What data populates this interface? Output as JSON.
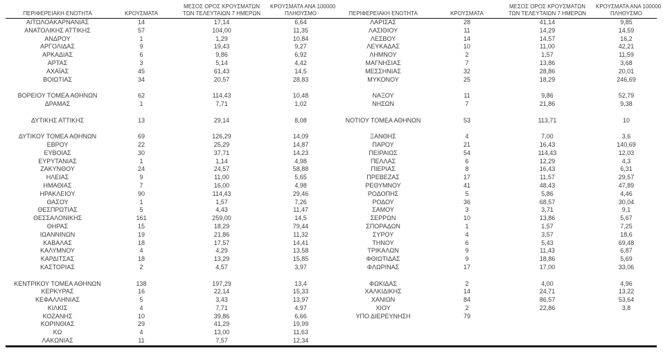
{
  "table": {
    "headers": {
      "region": "ΠΕΡΙΦΕΡΕΙΑΚΗ ΕΝΟΤΗΤΑ",
      "cases": "ΚΡΟΥΣΜΑΤΑ",
      "avg7": [
        "ΜΕΣΟΣ ΟΡΟΣ ΚΡΟΥΣΜΑΤΩΝ",
        "ΤΩΝ ΤΕΛΕΥΤΑΙΩΝ 7 ΗΜΕΡΩΝ"
      ],
      "per100k": [
        "ΚΡΟΥΣΜΑΤΑ ΑΝΑ 100000",
        "ΠΛΗΘΥΣΜΟ"
      ]
    },
    "rows": [
      [
        "ΑΙΤΩΛΟΑΚΑΡΝΑΝΙΑΣ",
        "14",
        "17,14",
        "6,64",
        "ΛΑΡΙΣΑΣ",
        "28",
        "41,14",
        "9,85"
      ],
      [
        "ΑΝΑΤΟΛΙΚΗΣ ΑΤΤΙΚΗΣ",
        "57",
        "104,00",
        "11,35",
        "ΛΑΣΙΘΙΟΥ",
        "11",
        "14,29",
        "14,59"
      ],
      [
        "ΑΝΔΡΟΥ",
        "1",
        "1,29",
        "10,84",
        "ΛΕΣΒΟΥ",
        "14",
        "14,57",
        "16,2"
      ],
      [
        "ΑΡΓΟΛΙΔΑΣ",
        "9",
        "19,43",
        "9,27",
        "ΛΕΥΚΑΔΑΣ",
        "10",
        "11,00",
        "42,21"
      ],
      [
        "ΑΡΚΑΔΙΑΣ",
        "6",
        "9,86",
        "6,92",
        "ΛΗΜΝΟΥ",
        "2",
        "1,57",
        "11,59"
      ],
      [
        "ΑΡΤΑΣ",
        "3",
        "5,14",
        "4,42",
        "ΜΑΓΝΗΣΙΑΣ",
        "7",
        "13,86",
        "3,68"
      ],
      [
        "ΑΧΑΪΑΣ",
        "45",
        "61,43",
        "14,5",
        "ΜΕΣΣΗΝΙΑΣ",
        "32",
        "28,86",
        "20,01"
      ],
      [
        "ΒΟΙΩΤΙΑΣ",
        "34",
        "20,57",
        "28,83",
        "ΜΥΚΟΝΟΥ",
        "25",
        "18,29",
        "246,69"
      ],
      [
        "",
        "",
        "",
        "",
        "",
        "",
        "",
        ""
      ],
      [
        "ΒΟΡΕΙΟΥ ΤΟΜΕΑ ΑΘΗΝΩΝ",
        "62",
        "114,43",
        "10,48",
        "ΝΑΞΟΥ",
        "11",
        "9,86",
        "52,79"
      ],
      [
        "ΔΡΑΜΑΣ",
        "1",
        "7,71",
        "1,02",
        "ΝΗΣΩΝ",
        "7",
        "21,86",
        "9,38"
      ],
      [
        "",
        "",
        "",
        "",
        "",
        "",
        "",
        ""
      ],
      [
        "ΔΥΤΙΚΗΣ ΑΤΤΙΚΗΣ",
        "13",
        "29,14",
        "8,08",
        "ΝΟΤΙΟΥ ΤΟΜΕΑ ΑΘΗΝΩΝ",
        "53",
        "113,71",
        "10"
      ],
      [
        "",
        "",
        "",
        "",
        "",
        "",
        "",
        ""
      ],
      [
        "ΔΥΤΙΚΟΥ ΤΟΜΕΑ ΑΘΗΝΩΝ",
        "69",
        "126,29",
        "14,09",
        "ΞΑΝΘΗΣ",
        "4",
        "7,00",
        "3,6"
      ],
      [
        "ΕΒΡΟΥ",
        "22",
        "25,29",
        "14,87",
        "ΠΑΡΟΥ",
        "21",
        "16,43",
        "140,69"
      ],
      [
        "ΕΥΒΟΙΑΣ",
        "30",
        "37,71",
        "14,23",
        "ΠΕΙΡΑΙΩΣ",
        "54",
        "114,43",
        "12,03"
      ],
      [
        "ΕΥΡΥΤΑΝΙΑΣ",
        "1",
        "1,14",
        "4,98",
        "ΠΕΛΛΑΣ",
        "6",
        "12,29",
        "4,3"
      ],
      [
        "ΖΑΚΥΝΘΟΥ",
        "24",
        "24,57",
        "58,88",
        "ΠΙΕΡΙΑΣ",
        "8",
        "16,43",
        "6,31"
      ],
      [
        "ΗΛΕΙΑΣ",
        "9",
        "11,00",
        "5,65",
        "ΠΡΕΒΕΖΑΣ",
        "17",
        "11,57",
        "29,57"
      ],
      [
        "ΗΜΑΘΙΑΣ",
        "7",
        "16,00",
        "4,98",
        "ΡΕΘΥΜΝΟΥ",
        "41",
        "48,43",
        "47,89"
      ],
      [
        "ΗΡΑΚΛΕΙΟΥ",
        "90",
        "114,43",
        "29,46",
        "ΡΟΔΟΠΗΣ",
        "5",
        "5,86",
        "4,46"
      ],
      [
        "ΘΑΣΟΥ",
        "1",
        "1,57",
        "7,26",
        "ΡΟΔΟΥ",
        "36",
        "68,57",
        "30,04"
      ],
      [
        "ΘΕΣΠΡΩΤΙΑΣ",
        "5",
        "4,43",
        "11,47",
        "ΣΑΜΟΥ",
        "3",
        "3,71",
        "9,1"
      ],
      [
        "ΘΕΣΣΑΛΟΝΙΚΗΣ",
        "161",
        "259,00",
        "14,5",
        "ΣΕΡΡΩΝ",
        "10",
        "13,86",
        "5,67"
      ],
      [
        "ΘΗΡΑΣ",
        "15",
        "18,29",
        "79,44",
        "ΣΠΟΡΑΔΩΝ",
        "1",
        "1,57",
        "7,25"
      ],
      [
        "ΙΩΑΝΝΙΝΩΝ",
        "19",
        "21,86",
        "11,32",
        "ΣΥΡΟΥ",
        "4",
        "3,57",
        "18,6"
      ],
      [
        "ΚΑΒΑΛΑΣ",
        "18",
        "17,57",
        "14,41",
        "ΤΗΝΟΥ",
        "6",
        "5,43",
        "69,48"
      ],
      [
        "ΚΑΛΥΜΝΟΥ",
        "4",
        "4,29",
        "13,58",
        "ΤΡΙΚΑΛΩΝ",
        "9",
        "11,43",
        "6,87"
      ],
      [
        "ΚΑΡΔΙΤΣΑΣ",
        "18",
        "13,29",
        "15,85",
        "ΦΘΙΩΤΙΔΑΣ",
        "9",
        "18,86",
        "5,69"
      ],
      [
        "ΚΑΣΤΟΡΙΑΣ",
        "2",
        "4,57",
        "3,97",
        "ΦΛΩΡΙΝΑΣ",
        "17",
        "17,00",
        "33,06"
      ],
      [
        "",
        "",
        "",
        "",
        "",
        "",
        "",
        ""
      ],
      [
        "ΚΕΝΤΡΙΚΟΥ ΤΟΜΕΑ ΑΘΗΝΩΝ",
        "138",
        "197,29",
        "13,4",
        "ΦΩΚΙΔΑΣ",
        "2",
        "4,00",
        "4,96"
      ],
      [
        "ΚΕΡΚΥΡΑΣ",
        "16",
        "22,14",
        "15,33",
        "ΧΑΛΚΙΔΙΚΗΣ",
        "14",
        "24,71",
        "13,22"
      ],
      [
        "ΚΕΦΑΛΛΗΝΙΑΣ",
        "5",
        "3,43",
        "13,97",
        "ΧΑΝΙΩΝ",
        "84",
        "86,57",
        "53,64"
      ],
      [
        "ΚΙΛΚΙΣ",
        "4",
        "7,71",
        "4,97",
        "ΧΙΟΥ",
        "2",
        "22,86",
        "3,8"
      ],
      [
        "ΚΟΖΑΝΗΣ",
        "10",
        "39,86",
        "6,66",
        "ΥΠΟ ΔΙΕΡΕΥΝΗΣΗ",
        "79",
        "",
        ""
      ],
      [
        "ΚΟΡΙΝΘΙΑΣ",
        "29",
        "41,29",
        "19,99",
        "",
        "",
        "",
        ""
      ],
      [
        "ΚΩ",
        "4",
        "13,00",
        "11,63",
        "",
        "",
        "",
        ""
      ],
      [
        "ΛΑΚΩΝΙΑΣ",
        "11",
        "7,57",
        "12,34",
        "",
        "",
        "",
        ""
      ]
    ]
  }
}
